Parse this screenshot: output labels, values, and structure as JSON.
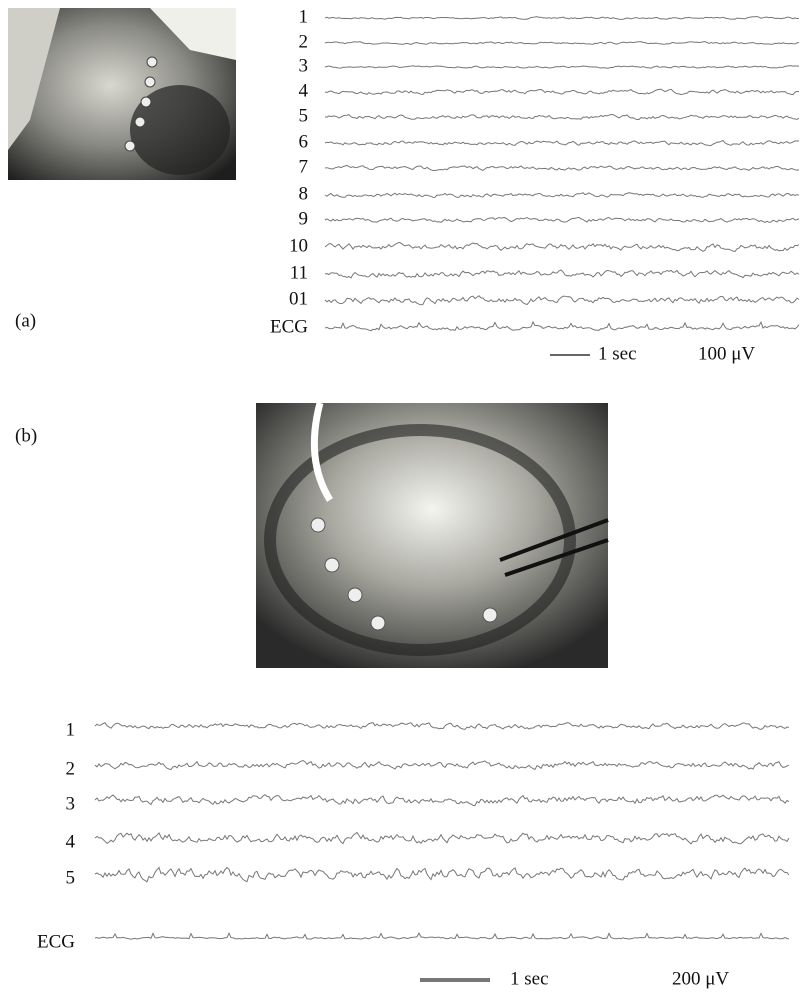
{
  "panel_a": {
    "label": "(a)",
    "channels": [
      "1",
      "2",
      "3",
      "4",
      "5",
      "6",
      "7",
      "8",
      "9",
      "10",
      "11",
      "01",
      "ECG"
    ],
    "scale": {
      "time": "1 sec",
      "amplitude": "100 μV"
    }
  },
  "panel_b": {
    "label": "(b)",
    "channels": [
      "1",
      "2",
      "3",
      "4",
      "5",
      "ECG"
    ],
    "scale": {
      "time": "1 sec",
      "amplitude": "200 μV"
    }
  }
}
